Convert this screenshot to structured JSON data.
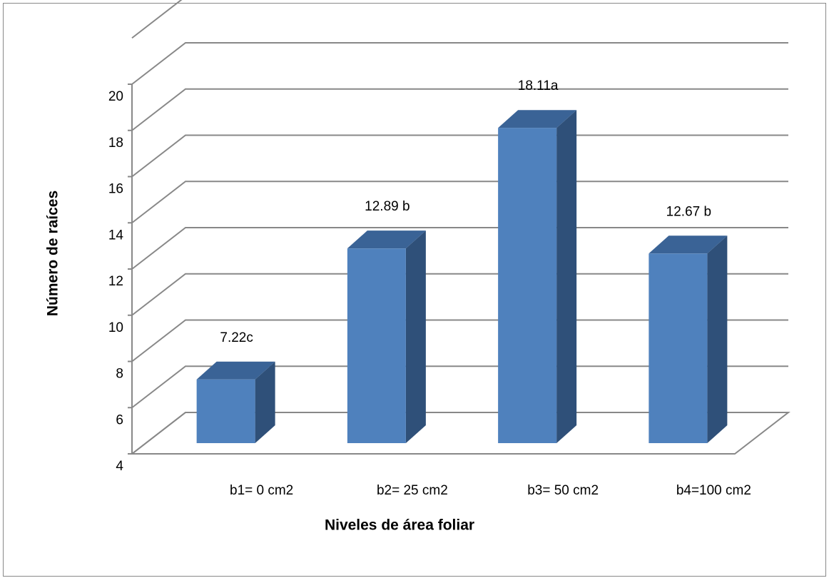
{
  "chart_data": {
    "type": "bar3d",
    "x_label": "Niveles de área foliar",
    "y_label": "Número de raíces",
    "categories": [
      "b1= 0 cm2",
      "b2= 25 cm2",
      "b3= 50 cm2",
      "b4=100 cm2"
    ],
    "values": [
      7.22,
      12.89,
      18.11,
      12.67
    ],
    "value_labels": [
      "7.22c",
      "12.89 b",
      "18.11a",
      "12.67 b"
    ],
    "color": "#4f81bd",
    "ylim": [
      4,
      22
    ],
    "yticks": [
      4,
      6,
      8,
      10,
      12,
      14,
      16,
      18,
      20
    ],
    "grid": true
  }
}
